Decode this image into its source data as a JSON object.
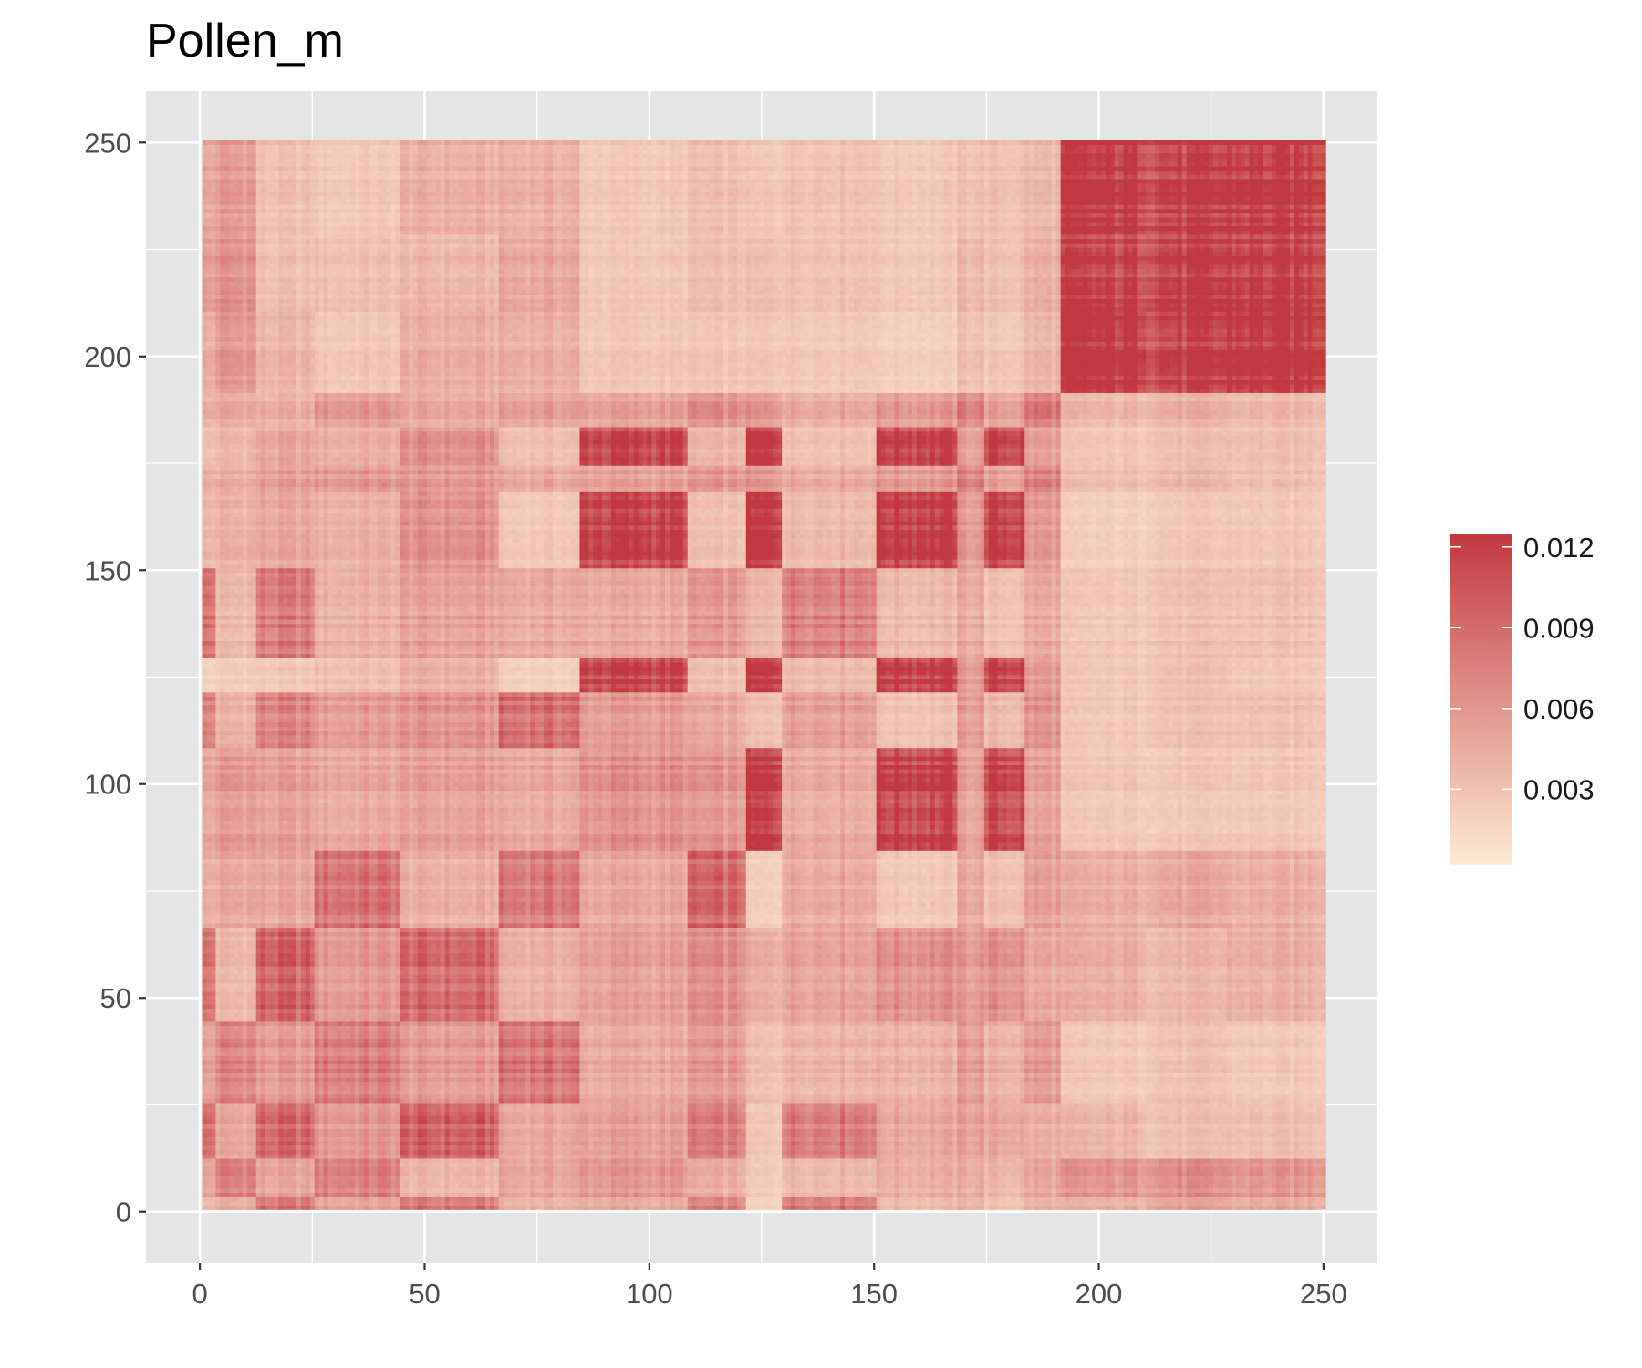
{
  "chart_data": {
    "type": "heatmap",
    "title": "Pollen_m",
    "xlabel": "",
    "ylabel": "",
    "xlim": [
      -12,
      262
    ],
    "ylim": [
      -12,
      262
    ],
    "x_ticks": [
      0,
      50,
      100,
      150,
      200,
      250
    ],
    "y_ticks": [
      0,
      50,
      100,
      150,
      200,
      250
    ],
    "x_tick_labels": [
      "0",
      "50",
      "100",
      "150",
      "200",
      "250"
    ],
    "y_tick_labels": [
      "0",
      "50",
      "100",
      "150",
      "200",
      "250"
    ],
    "grid": true,
    "n_cells": 250,
    "block_boundaries": [
      0,
      3,
      12,
      25,
      44,
      66,
      84,
      108,
      121,
      129,
      150,
      168,
      174,
      183,
      191,
      210,
      228,
      250
    ],
    "block_values": [
      [
        0.0035,
        0.0045,
        0.008,
        0.005,
        0.0078,
        0.004,
        0.0045,
        0.007,
        0.0018,
        0.008,
        0.0035,
        0.004,
        0.003,
        0.004,
        0.004,
        0.005,
        0.0045
      ],
      [
        0.0045,
        0.007,
        0.0045,
        0.007,
        0.0035,
        0.0045,
        0.0055,
        0.004,
        0.0022,
        0.0035,
        0.004,
        0.0042,
        0.0035,
        0.0045,
        0.0055,
        0.006,
        0.0055
      ],
      [
        0.008,
        0.0045,
        0.0085,
        0.0055,
        0.009,
        0.0045,
        0.005,
        0.007,
        0.0025,
        0.0075,
        0.0045,
        0.005,
        0.0045,
        0.004,
        0.0035,
        0.003,
        0.003
      ],
      [
        0.005,
        0.007,
        0.0055,
        0.0075,
        0.0055,
        0.008,
        0.0045,
        0.0055,
        0.003,
        0.004,
        0.004,
        0.0055,
        0.004,
        0.0055,
        0.0025,
        0.003,
        0.0025
      ],
      [
        0.0078,
        0.0035,
        0.009,
        0.0055,
        0.0085,
        0.004,
        0.005,
        0.006,
        0.004,
        0.005,
        0.006,
        0.0055,
        0.006,
        0.0045,
        0.004,
        0.0035,
        0.004
      ],
      [
        0.004,
        0.0045,
        0.0045,
        0.008,
        0.004,
        0.0075,
        0.0045,
        0.0085,
        0.002,
        0.0045,
        0.0025,
        0.0045,
        0.003,
        0.005,
        0.004,
        0.0045,
        0.004
      ],
      [
        0.0045,
        0.0055,
        0.005,
        0.0045,
        0.005,
        0.0045,
        0.006,
        0.0055,
        0.0115,
        0.0045,
        0.0115,
        0.005,
        0.011,
        0.005,
        0.0025,
        0.0025,
        0.0025
      ],
      [
        0.007,
        0.004,
        0.007,
        0.0055,
        0.006,
        0.0085,
        0.0055,
        0.0045,
        0.003,
        0.0055,
        0.003,
        0.0055,
        0.0035,
        0.006,
        0.0025,
        0.003,
        0.003
      ],
      [
        0.0018,
        0.0022,
        0.0025,
        0.003,
        0.004,
        0.002,
        0.0115,
        0.003,
        0.012,
        0.0035,
        0.012,
        0.0055,
        0.0115,
        0.0055,
        0.0025,
        0.003,
        0.0025
      ],
      [
        0.008,
        0.0035,
        0.0075,
        0.004,
        0.005,
        0.0045,
        0.0045,
        0.0055,
        0.0035,
        0.0075,
        0.0035,
        0.0045,
        0.003,
        0.0045,
        0.0025,
        0.003,
        0.003
      ],
      [
        0.0035,
        0.004,
        0.0045,
        0.004,
        0.006,
        0.0025,
        0.0115,
        0.003,
        0.012,
        0.0035,
        0.012,
        0.0055,
        0.0115,
        0.0055,
        0.002,
        0.0025,
        0.0025
      ],
      [
        0.004,
        0.0042,
        0.005,
        0.0055,
        0.0055,
        0.0045,
        0.005,
        0.0055,
        0.0055,
        0.0045,
        0.0055,
        0.007,
        0.005,
        0.007,
        0.003,
        0.0035,
        0.003
      ],
      [
        0.003,
        0.0035,
        0.0045,
        0.004,
        0.006,
        0.003,
        0.011,
        0.0035,
        0.0115,
        0.003,
        0.0115,
        0.005,
        0.011,
        0.005,
        0.0025,
        0.003,
        0.003
      ],
      [
        0.004,
        0.0045,
        0.004,
        0.0055,
        0.0045,
        0.005,
        0.005,
        0.006,
        0.0055,
        0.0045,
        0.0055,
        0.007,
        0.005,
        0.0075,
        0.0035,
        0.004,
        0.0035
      ],
      [
        0.004,
        0.0055,
        0.0035,
        0.0025,
        0.004,
        0.004,
        0.0025,
        0.0025,
        0.0025,
        0.0025,
        0.002,
        0.003,
        0.0025,
        0.0035,
        0.012,
        0.011,
        0.012
      ],
      [
        0.005,
        0.006,
        0.003,
        0.003,
        0.0035,
        0.0045,
        0.0025,
        0.003,
        0.003,
        0.003,
        0.0025,
        0.0035,
        0.003,
        0.004,
        0.011,
        0.0115,
        0.0115
      ],
      [
        0.0045,
        0.0055,
        0.003,
        0.0025,
        0.004,
        0.004,
        0.0025,
        0.003,
        0.0025,
        0.003,
        0.0025,
        0.003,
        0.003,
        0.0035,
        0.012,
        0.0115,
        0.012
      ]
    ],
    "color_low": "#fdebd3",
    "color_high": "#c2383f",
    "legend": {
      "type": "colorbar",
      "placement": "right",
      "breaks": [
        0.003,
        0.006,
        0.009,
        0.012
      ],
      "labels": [
        "0.003",
        "0.006",
        "0.009",
        "0.012"
      ],
      "min": 0.0002,
      "max": 0.0125
    },
    "panel_background": "#e5e5e5",
    "grid_color": "#ffffff"
  }
}
